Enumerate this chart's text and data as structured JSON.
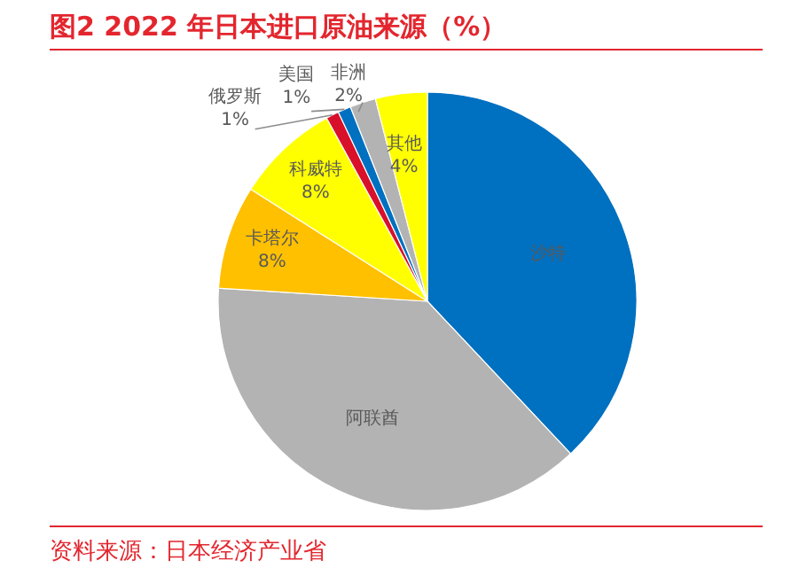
{
  "chart_data": {
    "type": "pie",
    "title": "图2  2022 年日本进口原油来源（%）",
    "categories": [
      "沙特",
      "阿联酋",
      "卡塔尔",
      "科威特",
      "俄罗斯",
      "美国",
      "非洲",
      "其他"
    ],
    "values": [
      38,
      38,
      8,
      8,
      1,
      1,
      2,
      4
    ],
    "colors": [
      "#0070c0",
      "#b3b3b3",
      "#ffc000",
      "#ffff00",
      "#d9102a",
      "#0070c0",
      "#b3b3b3",
      "#ffff00"
    ],
    "value_labels": [
      null,
      null,
      "8%",
      "8%",
      "1%",
      "1%",
      "2%",
      "4%"
    ],
    "annotations": [
      "资料来源：日本经济产业省"
    ]
  }
}
